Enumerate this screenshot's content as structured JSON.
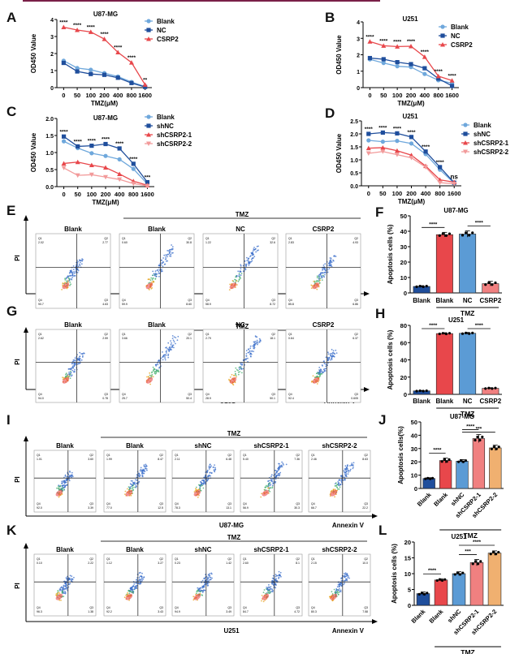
{
  "header": {
    "accent_color": "#7a2048"
  },
  "panel_labels": [
    "A",
    "B",
    "C",
    "D",
    "E",
    "F",
    "G",
    "H",
    "I",
    "J",
    "K",
    "L"
  ],
  "colors": {
    "blank_light": "#6fa8dc",
    "nc_dark": "#1f4e9c",
    "csrp2_red": "#e8474b",
    "sh2_pink": "#f29a9a",
    "bar_blank": "#1f4e9c",
    "bar_red": "#e8474b",
    "bar_blue": "#5b9bd5",
    "bar_pink": "#f08080",
    "bar_orange": "#f0b070"
  },
  "chart_data": [
    {
      "id": "A",
      "type": "line",
      "title": "U87-MG",
      "xlabel": "TMZ(μM)",
      "ylabel": "OD450 Value",
      "categories": [
        "0",
        "50",
        "100",
        "200",
        "400",
        "800",
        "1600"
      ],
      "ylim": [
        0,
        4
      ],
      "yticks": [
        "0",
        "1",
        "2",
        "3",
        "4"
      ],
      "legend": "top-right",
      "series": [
        {
          "name": "Blank",
          "color": "#6fa8dc",
          "marker": "circle",
          "values": [
            1.58,
            1.15,
            1.05,
            0.85,
            0.65,
            0.33,
            0.06
          ]
        },
        {
          "name": "NC",
          "color": "#1f4e9c",
          "marker": "square",
          "values": [
            1.45,
            0.95,
            0.8,
            0.75,
            0.58,
            0.27,
            0.04
          ]
        },
        {
          "name": "CSRP2",
          "color": "#e8474b",
          "marker": "triangle",
          "values": [
            3.55,
            3.38,
            3.27,
            2.85,
            2.07,
            1.47,
            0.17
          ]
        }
      ],
      "annotations": [
        "****",
        "****",
        "****",
        "****",
        "****",
        "****",
        "**"
      ]
    },
    {
      "id": "B",
      "type": "line",
      "title": "U251",
      "xlabel": "TMZ(μM)",
      "ylabel": "OD450 Value",
      "categories": [
        "0",
        "50",
        "100",
        "200",
        "400",
        "800",
        "1600"
      ],
      "ylim": [
        0,
        4
      ],
      "yticks": [
        "0",
        "1",
        "2",
        "3",
        "4"
      ],
      "legend": "top-right",
      "series": [
        {
          "name": "Blank",
          "color": "#6fa8dc",
          "marker": "circle",
          "values": [
            1.72,
            1.5,
            1.3,
            1.25,
            0.83,
            0.45,
            0.27
          ]
        },
        {
          "name": "NC",
          "color": "#1f4e9c",
          "marker": "square",
          "values": [
            1.8,
            1.73,
            1.55,
            1.43,
            1.18,
            0.55,
            0.1
          ]
        },
        {
          "name": "CSRP2",
          "color": "#e8474b",
          "marker": "triangle",
          "values": [
            2.8,
            2.55,
            2.5,
            2.52,
            1.87,
            0.7,
            0.43
          ]
        }
      ],
      "annotations": [
        "****",
        "****",
        "****",
        "****",
        "****",
        "****",
        "****"
      ]
    },
    {
      "id": "C",
      "type": "line",
      "title": "U87-MG",
      "xlabel": "TMZ(μM)",
      "ylabel": "OD450 Value",
      "categories": [
        "0",
        "50",
        "100",
        "200",
        "400",
        "800",
        "1600"
      ],
      "ylim": [
        0,
        2
      ],
      "yticks": [
        "0.0",
        "0.5",
        "1.0",
        "1.5",
        "2.0"
      ],
      "legend": "top-right",
      "series": [
        {
          "name": "Blank",
          "color": "#6fa8dc",
          "marker": "circle",
          "values": [
            1.33,
            1.13,
            0.98,
            0.9,
            0.8,
            0.52,
            0.08
          ]
        },
        {
          "name": "shNC",
          "color": "#1f4e9c",
          "marker": "square",
          "values": [
            1.47,
            1.18,
            1.2,
            1.25,
            1.12,
            0.67,
            0.13
          ]
        },
        {
          "name": "shCSRP2-1",
          "color": "#e8474b",
          "marker": "triangle",
          "values": [
            0.68,
            0.72,
            0.63,
            0.56,
            0.37,
            0.16,
            0.04
          ]
        },
        {
          "name": "shCSRP2-2",
          "color": "#f29a9a",
          "marker": "triangle-down",
          "values": [
            0.55,
            0.33,
            0.35,
            0.28,
            0.21,
            0.09,
            0.02
          ]
        }
      ],
      "annotations": [
        "****",
        "****",
        "****",
        "****",
        "****",
        "****",
        "***"
      ]
    },
    {
      "id": "D",
      "type": "line",
      "title": "U251",
      "xlabel": "TMZ(μM)",
      "ylabel": "OD450 Value",
      "categories": [
        "0",
        "50",
        "100",
        "200",
        "400",
        "800",
        "1600"
      ],
      "ylim": [
        0,
        2.5
      ],
      "yticks": [
        "0.0",
        "0.5",
        "1.0",
        "1.5",
        "2.0",
        "2.5"
      ],
      "legend": "right",
      "series": [
        {
          "name": "Blank",
          "color": "#6fa8dc",
          "marker": "circle",
          "values": [
            1.75,
            1.7,
            1.73,
            1.63,
            1.22,
            0.62,
            0.1
          ]
        },
        {
          "name": "shNC",
          "color": "#1f4e9c",
          "marker": "square",
          "values": [
            2.0,
            2.05,
            2.02,
            1.88,
            1.32,
            0.72,
            0.12
          ]
        },
        {
          "name": "shCSRP2-1",
          "color": "#e8474b",
          "marker": "triangle",
          "values": [
            1.45,
            1.47,
            1.35,
            1.18,
            0.76,
            0.23,
            0.14
          ]
        },
        {
          "name": "shCSRP2-2",
          "color": "#f29a9a",
          "marker": "triangle-down",
          "values": [
            1.25,
            1.32,
            1.2,
            1.08,
            0.72,
            0.12,
            0.08
          ]
        }
      ],
      "annotations": [
        "****",
        "****",
        "****",
        "****",
        "****",
        "****",
        "ns"
      ]
    },
    {
      "id": "F",
      "type": "bar",
      "title": "U87-MG",
      "ylabel": "Apoptosis cells (%)",
      "categories": [
        "Blank",
        "Blank",
        "NC",
        "CSRP2"
      ],
      "values": [
        4.2,
        37.8,
        38.2,
        6.0
      ],
      "errors": [
        0.5,
        1.5,
        2.0,
        1.5
      ],
      "colors": [
        "#1f4e9c",
        "#e8474b",
        "#5b9bd5",
        "#f08080"
      ],
      "ylim": [
        0,
        50
      ],
      "yticks": [
        "0",
        "10",
        "20",
        "30",
        "40",
        "50"
      ],
      "group_label": "TMZ",
      "group_span": [
        1,
        3
      ],
      "significance": [
        {
          "from": 0,
          "to": 1,
          "label": "****"
        },
        {
          "from": 2,
          "to": 3,
          "label": "****"
        }
      ]
    },
    {
      "id": "H",
      "type": "bar",
      "title": "U251",
      "ylabel": "Apoptosis cells (%)",
      "categories": [
        "Blank",
        "Blank",
        "NC",
        "CSRP2"
      ],
      "values": [
        4.0,
        70.5,
        70.8,
        7.0
      ],
      "errors": [
        0.5,
        1.0,
        1.0,
        0.7
      ],
      "colors": [
        "#1f4e9c",
        "#e8474b",
        "#5b9bd5",
        "#f08080"
      ],
      "ylim": [
        0,
        80
      ],
      "yticks": [
        "0",
        "20",
        "40",
        "60",
        "80"
      ],
      "group_label": "TMZ",
      "group_span": [
        1,
        3
      ],
      "significance": [
        {
          "from": 0,
          "to": 1,
          "label": "****"
        },
        {
          "from": 2,
          "to": 3,
          "label": "****"
        }
      ]
    },
    {
      "id": "J",
      "type": "bar",
      "title": "U87-MG",
      "ylabel": "Apoptosis cells(%)",
      "categories": [
        "Blank",
        "Blank",
        "shNC",
        "shCSRP2-1",
        "shCSRP2-2"
      ],
      "values": [
        7.5,
        21.0,
        20.5,
        37.5,
        30.5
      ],
      "errors": [
        0.6,
        1.8,
        1.2,
        3.0,
        2.0
      ],
      "colors": [
        "#1f4e9c",
        "#e8474b",
        "#5b9bd5",
        "#f08080",
        "#f0b070"
      ],
      "ylim": [
        0,
        50
      ],
      "yticks": [
        "0",
        "10",
        "20",
        "30",
        "40",
        "50"
      ],
      "group_label": "TMZ",
      "group_span": [
        1,
        4
      ],
      "significance": [
        {
          "from": 0,
          "to": 1,
          "label": "****"
        },
        {
          "from": 2,
          "to": 3,
          "label": "****"
        },
        {
          "from": 2,
          "to": 4,
          "label": "***"
        }
      ]
    },
    {
      "id": "L",
      "type": "bar",
      "title": "U251",
      "ylabel": "Apoptosis cells (%)",
      "categories": [
        "Blank",
        "Blank",
        "shNC",
        "shCSRP2-1",
        "shCSRP2-2"
      ],
      "values": [
        3.7,
        8.0,
        10.0,
        13.5,
        16.5
      ],
      "errors": [
        0.5,
        0.4,
        0.6,
        1.0,
        0.7
      ],
      "colors": [
        "#1f4e9c",
        "#e8474b",
        "#5b9bd5",
        "#f08080",
        "#f0b070"
      ],
      "ylim": [
        0,
        20
      ],
      "yticks": [
        "0",
        "5",
        "10",
        "15",
        "20"
      ],
      "group_label": "TMZ",
      "group_span": [
        1,
        4
      ],
      "significance": [
        {
          "from": 0,
          "to": 1,
          "label": "****"
        },
        {
          "from": 2,
          "to": 3,
          "label": "***"
        },
        {
          "from": 2,
          "to": 4,
          "label": "****"
        }
      ]
    }
  ],
  "flow_panels": [
    {
      "id": "E",
      "cell_line": "U87-MG",
      "y_axis": "PI",
      "x_axis": "Annexin V",
      "group_label": "TMZ",
      "plots": [
        {
          "title": "Blank",
          "q1": "2.02",
          "q2": "2.77",
          "q3": "4.63",
          "q4": "90.7",
          "spread": 0.2
        },
        {
          "title": "Blank",
          "q1": "0.60",
          "q2": "30.8",
          "q3": "8.60",
          "q4": "59.9",
          "spread": 0.6
        },
        {
          "title": "NC",
          "q1": "1.22",
          "q2": "32.6",
          "q3": "8.72",
          "q4": "58.9",
          "spread": 0.6
        },
        {
          "title": "CSRP2",
          "q1": "2.83",
          "q2": "4.93",
          "q3": "6.86",
          "q4": "85.8",
          "spread": 0.3
        }
      ]
    },
    {
      "id": "G",
      "cell_line": "U251",
      "y_axis": "PI",
      "x_axis": "Annexin V",
      "group_label": "TMZ",
      "plots": [
        {
          "title": "Blank",
          "q1": "2.62",
          "q2": "2.59",
          "q3": "0.78",
          "q4": "94.0",
          "spread": 0.25
        },
        {
          "title": "Blank",
          "q1": "3.66",
          "q2": "20.1",
          "q3": "50.4",
          "q4": "25.7",
          "spread": 0.75
        },
        {
          "title": "NC",
          "q1": "2.79",
          "q2": "18.1",
          "q3": "50.1",
          "q4": "28.9",
          "spread": 0.75
        },
        {
          "title": "CSRP2",
          "q1": "0.64",
          "q2": "6.37",
          "q3": "0.605",
          "q4": "92.4",
          "spread": 0.35
        }
      ]
    },
    {
      "id": "I",
      "cell_line": "U87-MG",
      "y_axis": "PI",
      "x_axis": "Annexin V",
      "group_label": "TMZ",
      "plots": [
        {
          "title": "Blank",
          "q1": "1.01",
          "q2": "3.60",
          "q3": "3.39",
          "q4": "92.0",
          "spread": 0.2
        },
        {
          "title": "Blank",
          "q1": "1.99",
          "q2": "8.47",
          "q3": "12.5",
          "q4": "77.0",
          "spread": 0.4
        },
        {
          "title": "shNC",
          "q1": "2.11",
          "q2": "6.48",
          "q3": "13.1",
          "q4": "78.3",
          "spread": 0.4
        },
        {
          "title": "shCSRP2-1",
          "q1": "5.40",
          "q2": "7.36",
          "q3": "30.3",
          "q4": "56.9",
          "spread": 0.55
        },
        {
          "title": "shCSRP2-2",
          "q1": "2.46",
          "q2": "8.63",
          "q3": "22.2",
          "q4": "66.7",
          "spread": 0.5
        }
      ]
    },
    {
      "id": "K",
      "cell_line": "U251",
      "y_axis": "PI",
      "x_axis": "Annexin V",
      "group_label": "TMZ",
      "plots": [
        {
          "title": "Blank",
          "q1": "0.10",
          "q2": "2.22",
          "q3": "1.38",
          "q4": "96.3",
          "spread": 0.2
        },
        {
          "title": "Blank",
          "q1": "1.12",
          "q2": "3.27",
          "q3": "3.43",
          "q4": "92.2",
          "spread": 0.25
        },
        {
          "title": "shNC",
          "q1": "0.23",
          "q2": "1.42",
          "q3": "3.49",
          "q4": "94.9",
          "spread": 0.25
        },
        {
          "title": "shCSRP2-1",
          "q1": "2.60",
          "q2": "8.1",
          "q3": "4.72",
          "q4": "84.7",
          "spread": 0.3
        },
        {
          "title": "shCSRP2-2",
          "q1": "2.15",
          "q2": "10.0",
          "q3": "7.58",
          "q4": "80.3",
          "spread": 0.3
        }
      ]
    }
  ]
}
